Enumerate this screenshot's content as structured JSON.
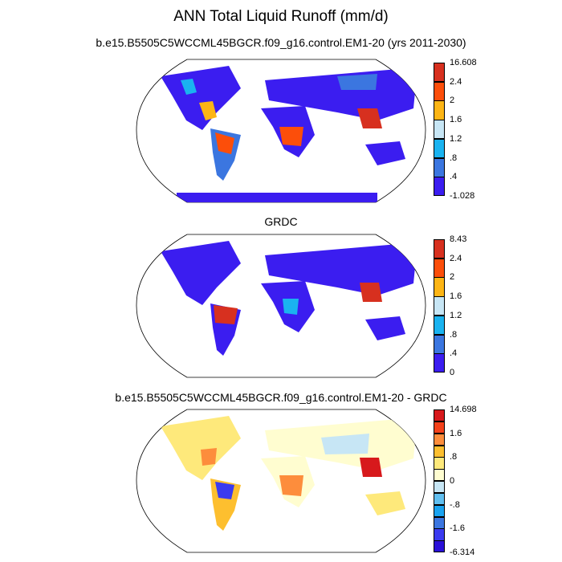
{
  "main_title": "ANN Total Liquid Runoff (mm/d)",
  "panels": [
    {
      "title": "b.e15.B5505C5WCCML45BGCR.f09_g16.control.EM1-20 (yrs 2011-2030)",
      "colorbar": {
        "labels": [
          "16.608",
          "2.4",
          "2",
          "1.6",
          "1.2",
          ".8",
          ".4",
          "-1.028"
        ],
        "colors": [
          "#d7301f",
          "#fc4e0a",
          "#fdb515",
          "#c7e6f5",
          "#1ab3f0",
          "#3b76e0",
          "#3b1df0"
        ]
      }
    },
    {
      "title": "GRDC",
      "colorbar": {
        "labels": [
          "8.43",
          "2.4",
          "2",
          "1.6",
          "1.2",
          ".8",
          ".4",
          "0"
        ],
        "colors": [
          "#d7301f",
          "#fc4e0a",
          "#fdb515",
          "#c7e6f5",
          "#1ab3f0",
          "#3b76e0",
          "#3b1df0"
        ]
      }
    },
    {
      "title": "b.e15.B5505C5WCCML45BGCR.f09_g16.control.EM1-20 - GRDC",
      "colorbar": {
        "labels": [
          "14.698",
          "1.6",
          ".8",
          "0",
          "-.8",
          "-1.6",
          "-6.314"
        ],
        "colors": [
          "#d7191c",
          "#f4411a",
          "#fd8d3c",
          "#fdbf2f",
          "#fee97b",
          "#fffdd0",
          "#c7e6f5",
          "#61bff0",
          "#1aa3f0",
          "#3b76e0",
          "#3b3bf0",
          "#2a10d8"
        ]
      }
    }
  ]
}
